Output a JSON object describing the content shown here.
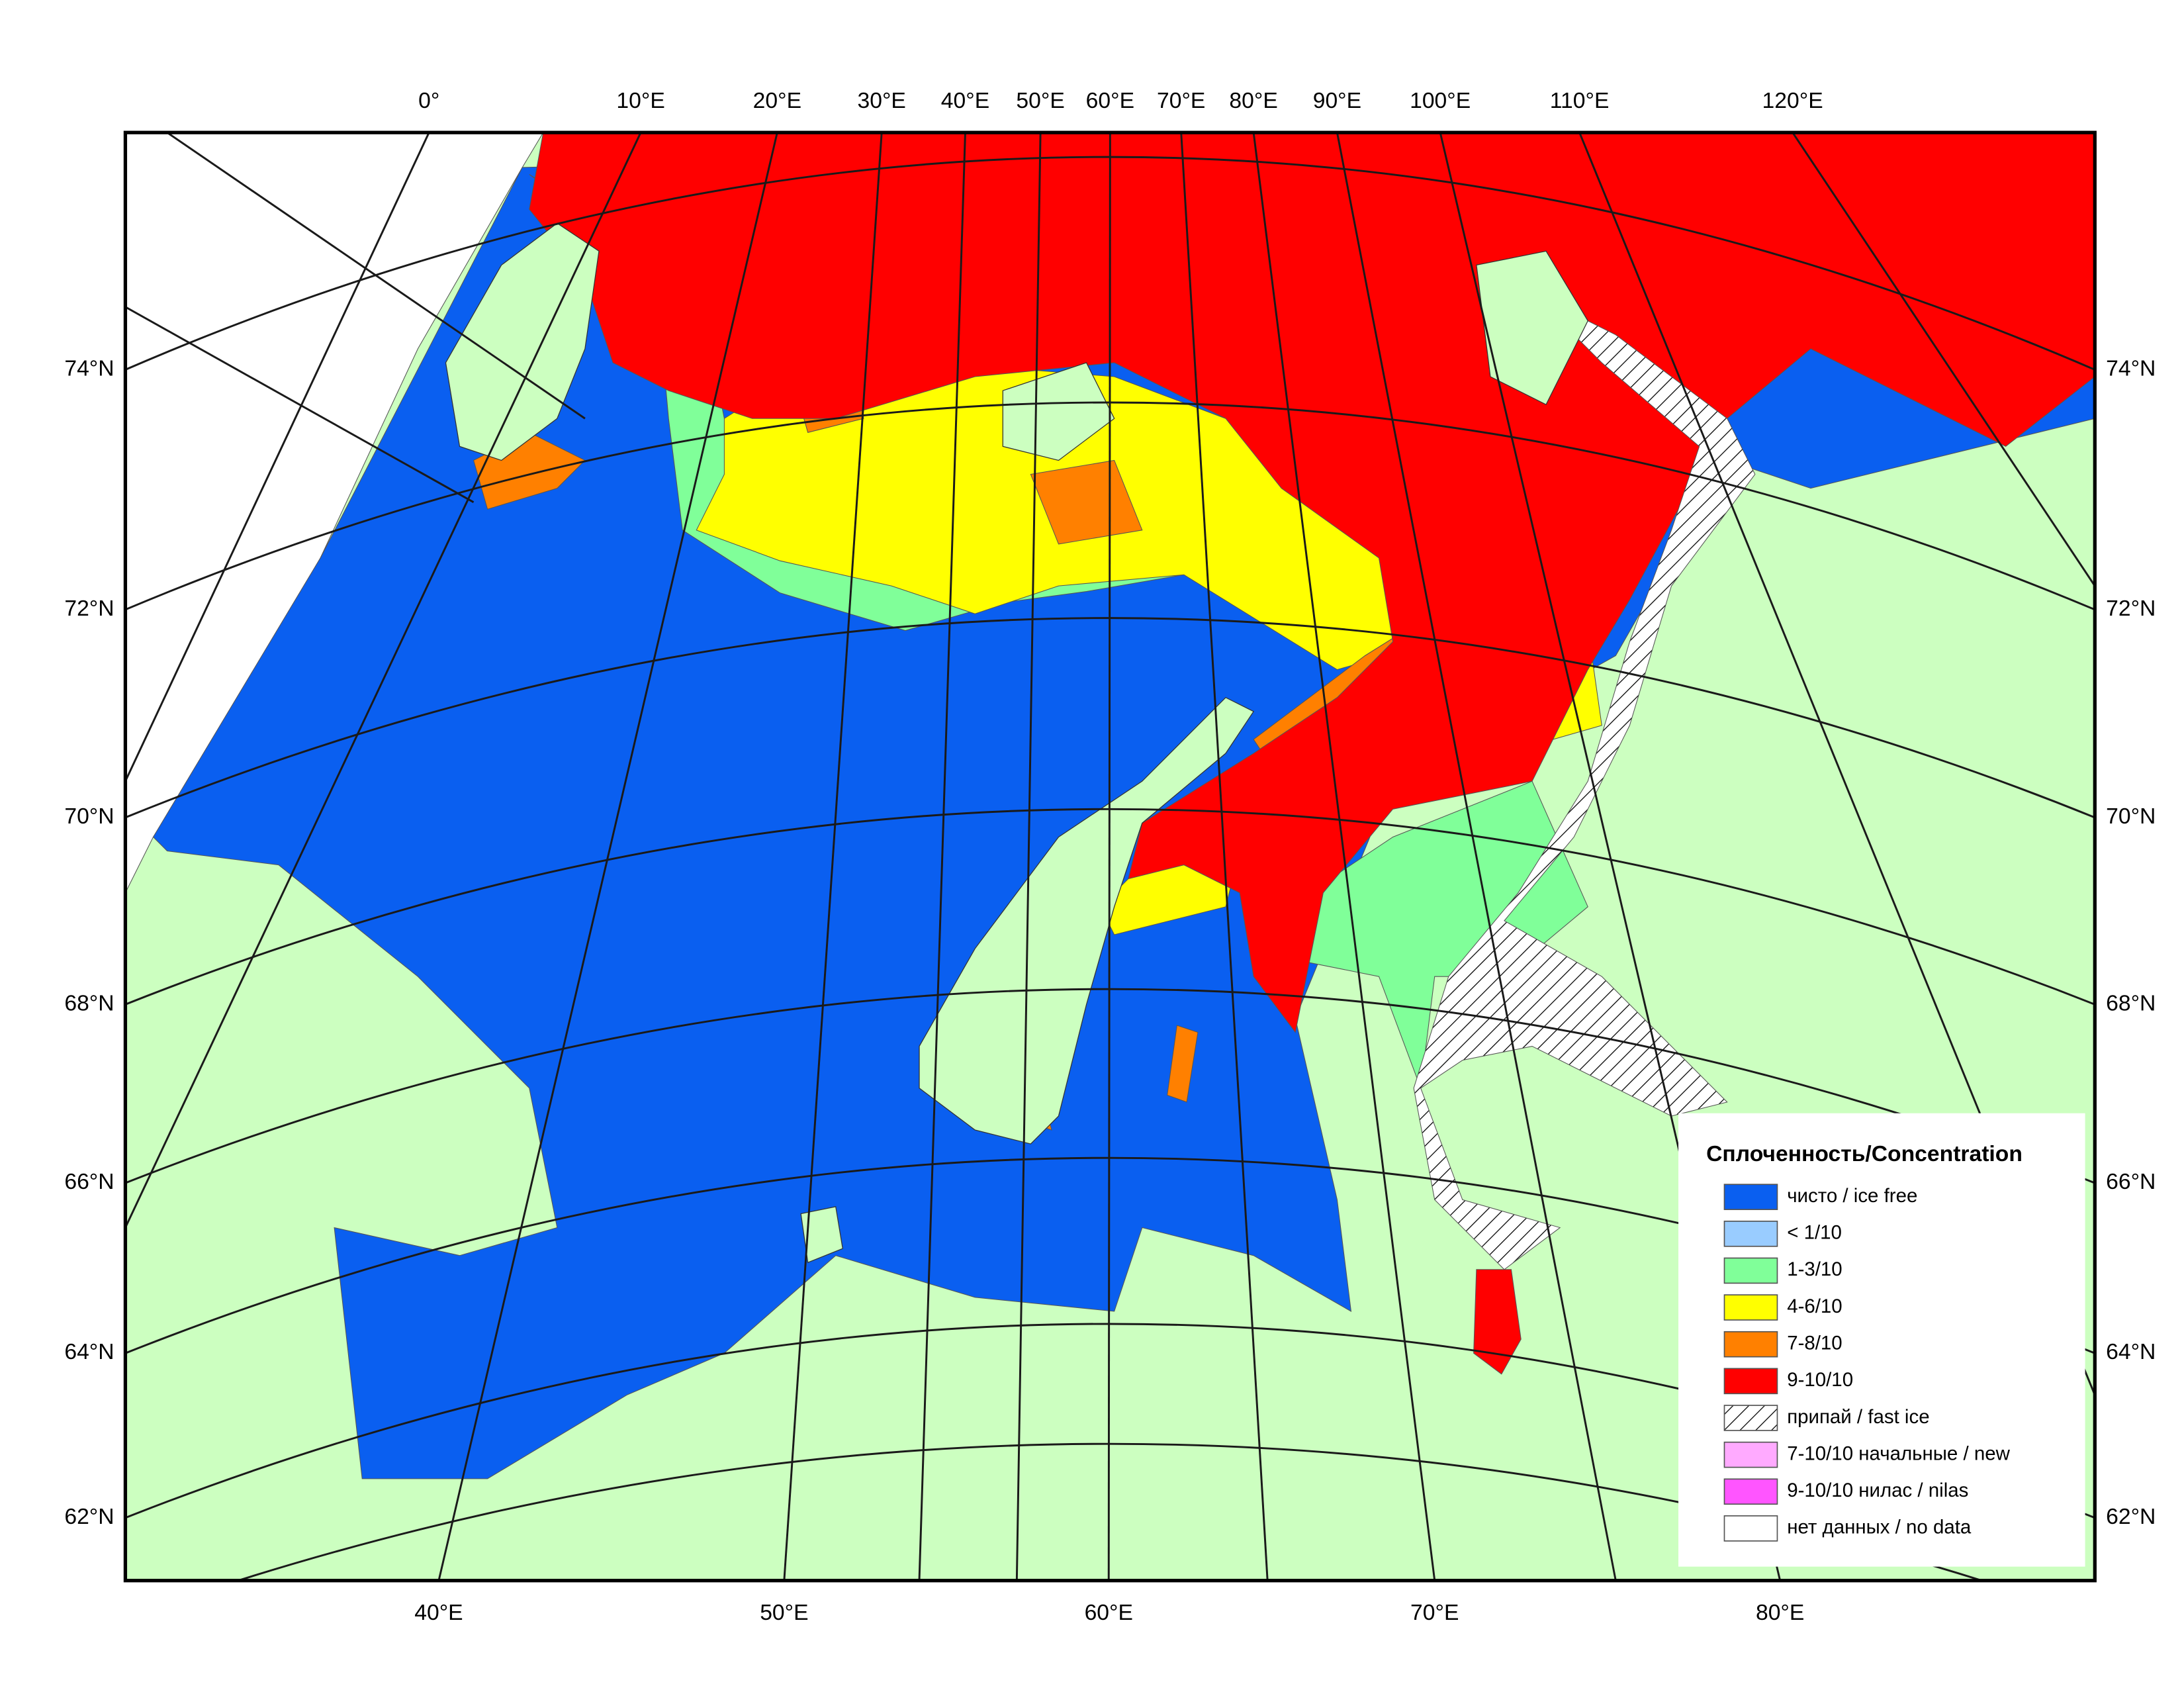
{
  "top_labels": [
    "0°",
    "10°E",
    "20°E",
    "30°E",
    "40°E",
    "50°E",
    "60°E",
    "70°E",
    "80°E",
    "90°E",
    "100°E",
    "110°E",
    "120°E"
  ],
  "bottom_labels": [
    "40°E",
    "50°E",
    "60°E",
    "70°E",
    "80°E"
  ],
  "left_labels": [
    "74°N",
    "72°N",
    "70°N",
    "68°N",
    "66°N",
    "64°N",
    "62°N"
  ],
  "right_labels": [
    "74°N",
    "72°N",
    "70°N",
    "68°N",
    "66°N",
    "64°N",
    "62°N"
  ],
  "legend": {
    "title": "Сплоченность/Concentration",
    "items": [
      {
        "label": "чисто / ice free",
        "color": "#0a5ff0"
      },
      {
        "label": "< 1/10",
        "color": "#99ccff"
      },
      {
        "label": "1-3/10",
        "color": "#80ff99"
      },
      {
        "label": "4-6/10",
        "color": "#ffff00"
      },
      {
        "label": "7-8/10",
        "color": "#ff8000"
      },
      {
        "label": "9-10/10",
        "color": "#ff0000"
      },
      {
        "label": "припай / fast ice",
        "color": "#ffffff",
        "pattern": "hatch"
      },
      {
        "label": "7-10/10 начальные / new",
        "color": "#ffaaff"
      },
      {
        "label": "9-10/10 нилас / nilas",
        "color": "#ff55ff"
      },
      {
        "label": "нет данных / no data",
        "color": "#ffffff"
      }
    ]
  }
}
